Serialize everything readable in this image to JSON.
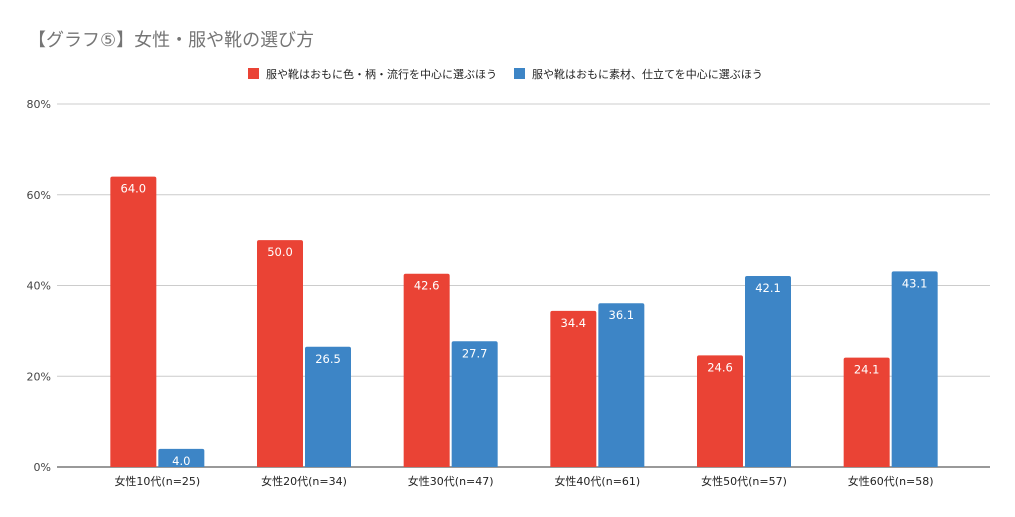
{
  "chart_data": {
    "type": "bar",
    "title": "【グラフ⑤】女性・服や靴の選び方",
    "categories": [
      "女性10代(n=25)",
      "女性20代(n=34)",
      "女性30代(n=47)",
      "女性40代(n=61)",
      "女性50代(n=57)",
      "女性60代(n=58)"
    ],
    "series": [
      {
        "name": "服や靴はおもに色・柄・流行を中心に選ぶほう",
        "color": "#ea4335",
        "values": [
          64.0,
          50.0,
          42.6,
          34.4,
          24.6,
          24.1
        ]
      },
      {
        "name": "服や靴はおもに素材、仕立てを中心に選ぶほう",
        "color": "#3d85c6",
        "values": [
          4.0,
          26.5,
          27.7,
          36.1,
          42.1,
          43.1
        ]
      }
    ],
    "ylim": [
      0,
      80
    ],
    "yticks": [
      0,
      20,
      40,
      60,
      80
    ],
    "ytick_labels": [
      "0%",
      "20%",
      "40%",
      "60%",
      "80%"
    ],
    "xlabel": "",
    "ylabel": "",
    "grid": true,
    "legend_position": "top"
  }
}
